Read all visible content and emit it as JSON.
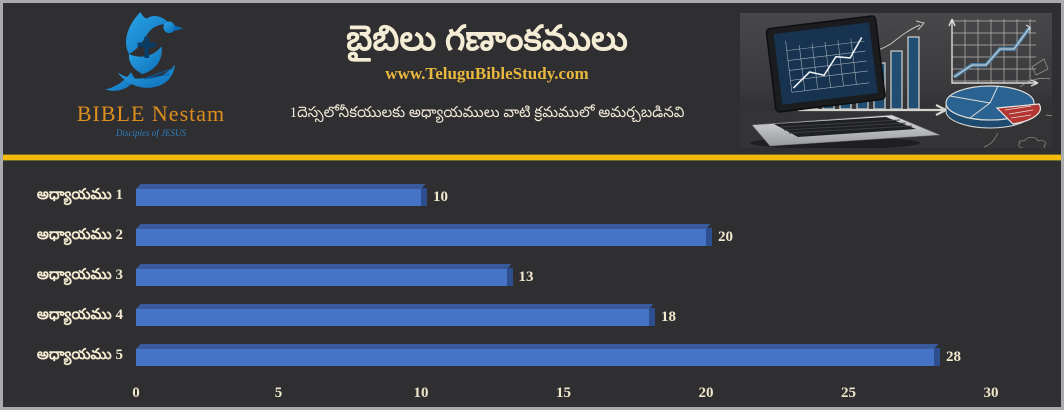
{
  "page": {
    "background": "#2f2e30",
    "frame_border": "#a9abad",
    "accent_gold": "#f5b90a"
  },
  "header": {
    "logo": {
      "text": "BIBLE Nestam",
      "tagline": "Disciples of JESUS",
      "icon": "dove-cross-hand-logo",
      "text_color": "#dd8f1e",
      "icon_color": "#1e8fd5"
    },
    "title": "బైబిలు గణాంకములు",
    "website": "www.TeluguBibleStudy.com",
    "subtitle": "1దెస్సలోనీకయులకు అధ్యాయములు వాటి క్రమములో అమర్చబడినవి",
    "hero_image": "laptop-with-chalkboard-charts-photo"
  },
  "chart_data": {
    "type": "bar",
    "orientation": "horizontal",
    "title": "బైబిలు గణాంకములు",
    "subtitle": "1దెస్సలోనీకయులకు అధ్యాయములు వాటి క్రమములో అమర్చబడినవి",
    "categories": [
      "అధ్యాయము 1",
      "అధ్యాయము 2",
      "అధ్యాయము 3",
      "అధ్యాయము 4",
      "అధ్యాయము 5"
    ],
    "values": [
      10,
      20,
      13,
      18,
      28
    ],
    "xticks": [
      0,
      5,
      10,
      15,
      20,
      25,
      30
    ],
    "xlim": [
      0,
      30
    ],
    "grid": false,
    "legend": false,
    "bar_color": "#4573c6",
    "bar_top_color": "#3a5a9e",
    "bar_end_color": "#2d4e8f",
    "label_color": "#f2e9ce"
  }
}
